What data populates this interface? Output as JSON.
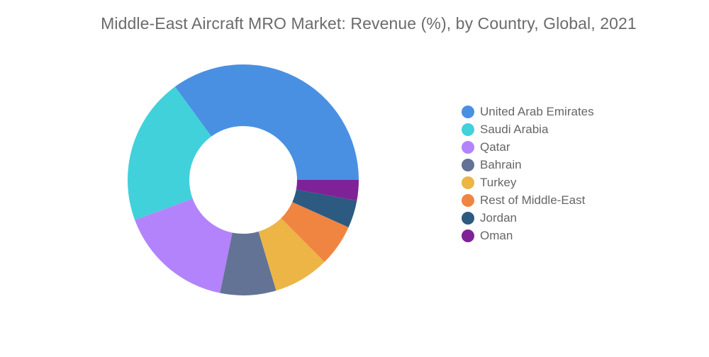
{
  "chart_data": {
    "type": "pie",
    "subtype": "donut",
    "title": "Middle-East Aircraft MRO Market: Revenue (%), by Country, Global, 2021",
    "legend_position": "right",
    "categories": [
      "United Arab Emirates",
      "Saudi Arabia",
      "Qatar",
      "Bahrain",
      "Turkey",
      "Rest of Middle-East",
      "Jordan",
      "Oman"
    ],
    "values": [
      35.4,
      20.8,
      16.3,
      7.9,
      7.9,
      5.9,
      3.9,
      2.9
    ],
    "colors": [
      "#4a90e2",
      "#41d1da",
      "#b383fb",
      "#637396",
      "#ecb546",
      "#f08542",
      "#2c5a80",
      "#7f2297"
    ]
  }
}
